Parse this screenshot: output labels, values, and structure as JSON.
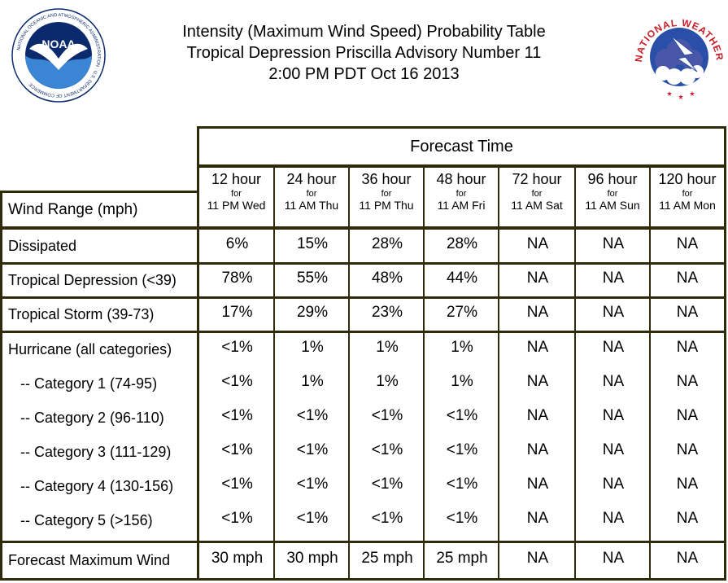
{
  "header": {
    "title_line1": "Intensity (Maximum Wind Speed) Probability Table",
    "title_line2": "Tropical Depression Priscilla Advisory Number 11",
    "title_line3": "2:00 PM PDT Oct 16 2013"
  },
  "logos": {
    "noaa_text": "NOAA",
    "noaa_ring_text": "NATIONAL OCEANIC AND ATMOSPHERIC ADMINISTRATION · U.S. DEPARTMENT OF COMMERCE",
    "nws_ring_text": "NATIONAL WEATHER SERVICE"
  },
  "table": {
    "forecast_time_label": "Forecast Time",
    "wind_range_label": "Wind Range (mph)",
    "for_label": "for",
    "columns": [
      {
        "hour": "12 hour",
        "time": "11 PM Wed"
      },
      {
        "hour": "24 hour",
        "time": "11 AM Thu"
      },
      {
        "hour": "36 hour",
        "time": "11 PM Thu"
      },
      {
        "hour": "48 hour",
        "time": "11 AM Fri"
      },
      {
        "hour": "72 hour",
        "time": "11 AM Sat"
      },
      {
        "hour": "96 hour",
        "time": "11 AM Sun"
      },
      {
        "hour": "120 hour",
        "time": "11 AM Mon"
      }
    ],
    "rows": [
      {
        "label": "Dissipated",
        "values": [
          "6%",
          "15%",
          "28%",
          "28%",
          "NA",
          "NA",
          "NA"
        ]
      },
      {
        "label": "Tropical Depression (<39)",
        "values": [
          "78%",
          "55%",
          "48%",
          "44%",
          "NA",
          "NA",
          "NA"
        ]
      },
      {
        "label": "Tropical Storm (39-73)",
        "values": [
          "17%",
          "29%",
          "23%",
          "27%",
          "NA",
          "NA",
          "NA"
        ]
      },
      {
        "label": "Hurricane (all categories)",
        "values": [
          "<1%",
          "1%",
          "1%",
          "1%",
          "NA",
          "NA",
          "NA"
        ]
      },
      {
        "label": "-- Category 1 (74-95)",
        "values": [
          "<1%",
          "1%",
          "1%",
          "1%",
          "NA",
          "NA",
          "NA"
        ]
      },
      {
        "label": "-- Category 2 (96-110)",
        "values": [
          "<1%",
          "<1%",
          "<1%",
          "<1%",
          "NA",
          "NA",
          "NA"
        ]
      },
      {
        "label": "-- Category 3 (111-129)",
        "values": [
          "<1%",
          "<1%",
          "<1%",
          "<1%",
          "NA",
          "NA",
          "NA"
        ]
      },
      {
        "label": "-- Category 4 (130-156)",
        "values": [
          "<1%",
          "<1%",
          "<1%",
          "<1%",
          "NA",
          "NA",
          "NA"
        ]
      },
      {
        "label": "-- Category 5 (>156)",
        "values": [
          "<1%",
          "<1%",
          "<1%",
          "<1%",
          "NA",
          "NA",
          "NA"
        ]
      },
      {
        "label": "Forecast Maximum Wind",
        "values": [
          "30 mph",
          "30 mph",
          "25 mph",
          "25 mph",
          "NA",
          "NA",
          "NA"
        ]
      }
    ]
  },
  "colors": {
    "border": "#2e2a0a",
    "noaa_blue": "#1f3f8f",
    "noaa_navy": "#0b2a6e",
    "nws_red": "#c8202a",
    "nws_blue": "#2a4fa8"
  }
}
